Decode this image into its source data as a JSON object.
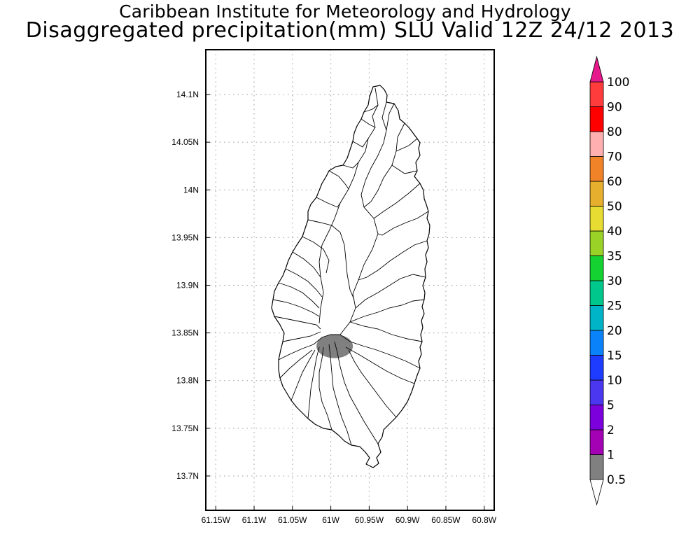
{
  "title": {
    "line1": "Caribbean Institute for Meteorology and Hydrology",
    "line2": "Disaggregated precipitation(mm) SLU Valid 12Z 24/12 2013"
  },
  "map": {
    "x_ticks": [
      "61.15W",
      "61.1W",
      "61.05W",
      "61W",
      "60.95W",
      "60.9W",
      "60.85W",
      "60.8W"
    ],
    "y_ticks": [
      "14.1N",
      "14.05N",
      "14N",
      "13.95N",
      "13.9N",
      "13.85N",
      "13.8N",
      "13.75N",
      "13.7N"
    ],
    "gridlines": true,
    "x_range": [
      -61.163,
      -60.787
    ],
    "y_range": [
      13.664,
      14.147
    ],
    "precip_area": {
      "lon": -60.995,
      "lat": 13.836,
      "value_range": "0.5-1",
      "color": "#808080"
    }
  },
  "colorbar": {
    "levels": [
      "0.5",
      "1",
      "2",
      "5",
      "10",
      "15",
      "20",
      "25",
      "30",
      "35",
      "40",
      "50",
      "60",
      "70",
      "80",
      "90",
      "100"
    ],
    "colors": [
      "#808080",
      "#a400b4",
      "#7b00dc",
      "#4b37f0",
      "#1e3cff",
      "#0a82fa",
      "#00b4c8",
      "#00c88c",
      "#14d232",
      "#9ad228",
      "#e6dc32",
      "#e6af2d",
      "#f08228",
      "#ffafaf",
      "#ff0000",
      "#ff3c3c",
      "#e6198c"
    ]
  }
}
